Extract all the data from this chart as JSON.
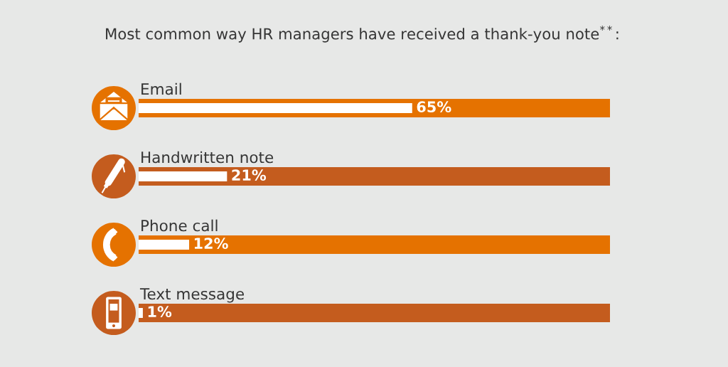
{
  "chart_data": {
    "type": "bar",
    "orientation": "horizontal",
    "title": "Most common way HR managers have received a thank-you note$^{**}$:",
    "categories": [
      "Email",
      "Handwritten note",
      "Phone call",
      "Text message"
    ],
    "values": [
      65,
      21,
      12,
      1
    ],
    "value_labels": [
      "65%",
      "21%",
      "12%",
      "1%"
    ],
    "color": "#ffffff",
    "xlim": [
      0,
      112
    ],
    "tick_labels": "y",
    "bands": [
      {
        "axis": "x",
        "from": 0,
        "to": 112,
        "color": "#e57200"
      },
      {
        "axis": "x",
        "from": 0,
        "to": 112,
        "color": "#c45c1e"
      },
      {
        "axis": "x",
        "from": 0,
        "to": 112,
        "color": "#e57200"
      },
      {
        "axis": "x",
        "from": 0,
        "to": 112,
        "color": "#c45c1e"
      }
    ]
  }
}
